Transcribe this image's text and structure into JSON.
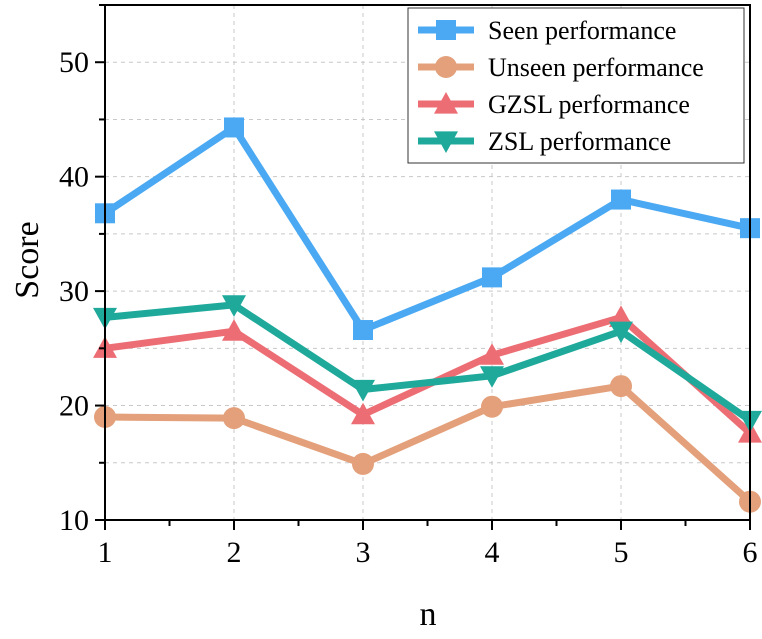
{
  "chart_data": {
    "type": "line",
    "title": "",
    "xlabel": "n",
    "ylabel": "Score",
    "x": [
      1,
      2,
      3,
      4,
      5,
      6
    ],
    "xlim": [
      1,
      6
    ],
    "ylim": [
      10,
      55
    ],
    "xticks": [
      "1",
      "2",
      "3",
      "4",
      "5",
      "6"
    ],
    "yticks": [
      10,
      20,
      30,
      40,
      50
    ],
    "grid": true,
    "legend_position": "top-right",
    "series": [
      {
        "name": "Seen performance",
        "values": [
          36.8,
          44.3,
          26.6,
          31.2,
          38.0,
          35.5
        ],
        "color": "#4aa9f2",
        "marker": "square"
      },
      {
        "name": "Unseen performance",
        "values": [
          19.0,
          18.9,
          14.9,
          19.9,
          21.7,
          11.6
        ],
        "color": "#e3a07a",
        "marker": "circle"
      },
      {
        "name": "GZSL performance",
        "values": [
          25.0,
          26.5,
          19.2,
          24.4,
          27.7,
          17.6
        ],
        "color": "#ec6e74",
        "marker": "triangle-up"
      },
      {
        "name": "ZSL performance",
        "values": [
          27.7,
          28.8,
          21.4,
          22.6,
          26.5,
          18.7
        ],
        "color": "#1fa99b",
        "marker": "triangle-down"
      }
    ]
  }
}
